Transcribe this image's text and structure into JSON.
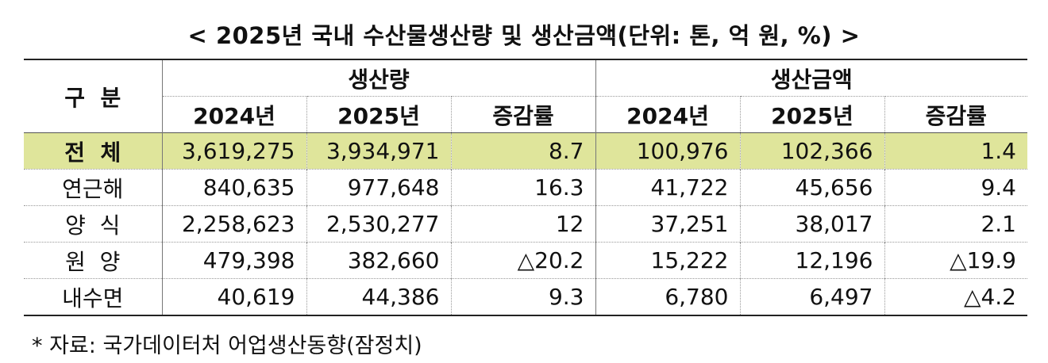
{
  "title": "< 2025년 국내 수산물생산량 및 생산금액(단위: 톤, 억 원, %) >",
  "header": {
    "category": "구  분",
    "group_volume": "생산량",
    "group_value": "생산금액",
    "sub": [
      "2024년",
      "2025년",
      "증감률",
      "2024년",
      "2025년",
      "증감률"
    ]
  },
  "rows": [
    {
      "label": "전  체",
      "cells": [
        "3,619,275",
        "3,934,971",
        "8.7",
        "100,976",
        "102,366",
        "1.4"
      ]
    },
    {
      "label": "연근해",
      "cells": [
        "840,635",
        "977,648",
        "16.3",
        "41,722",
        "45,656",
        "9.4"
      ]
    },
    {
      "label": "양  식",
      "cells": [
        "2,258,623",
        "2,530,277",
        "12",
        "37,251",
        "38,017",
        "2.1"
      ]
    },
    {
      "label": "원  양",
      "cells": [
        "479,398",
        "382,660",
        "△20.2",
        "15,222",
        "12,196",
        "△19.9"
      ]
    },
    {
      "label": "내수면",
      "cells": [
        "40,619",
        "44,386",
        "9.3",
        "6,780",
        "6,497",
        "△4.2"
      ]
    }
  ],
  "source": "* 자료: 국가데이터처 어업생산동향(잠정치)",
  "colors": {
    "highlight_row": "#dfe59b"
  }
}
